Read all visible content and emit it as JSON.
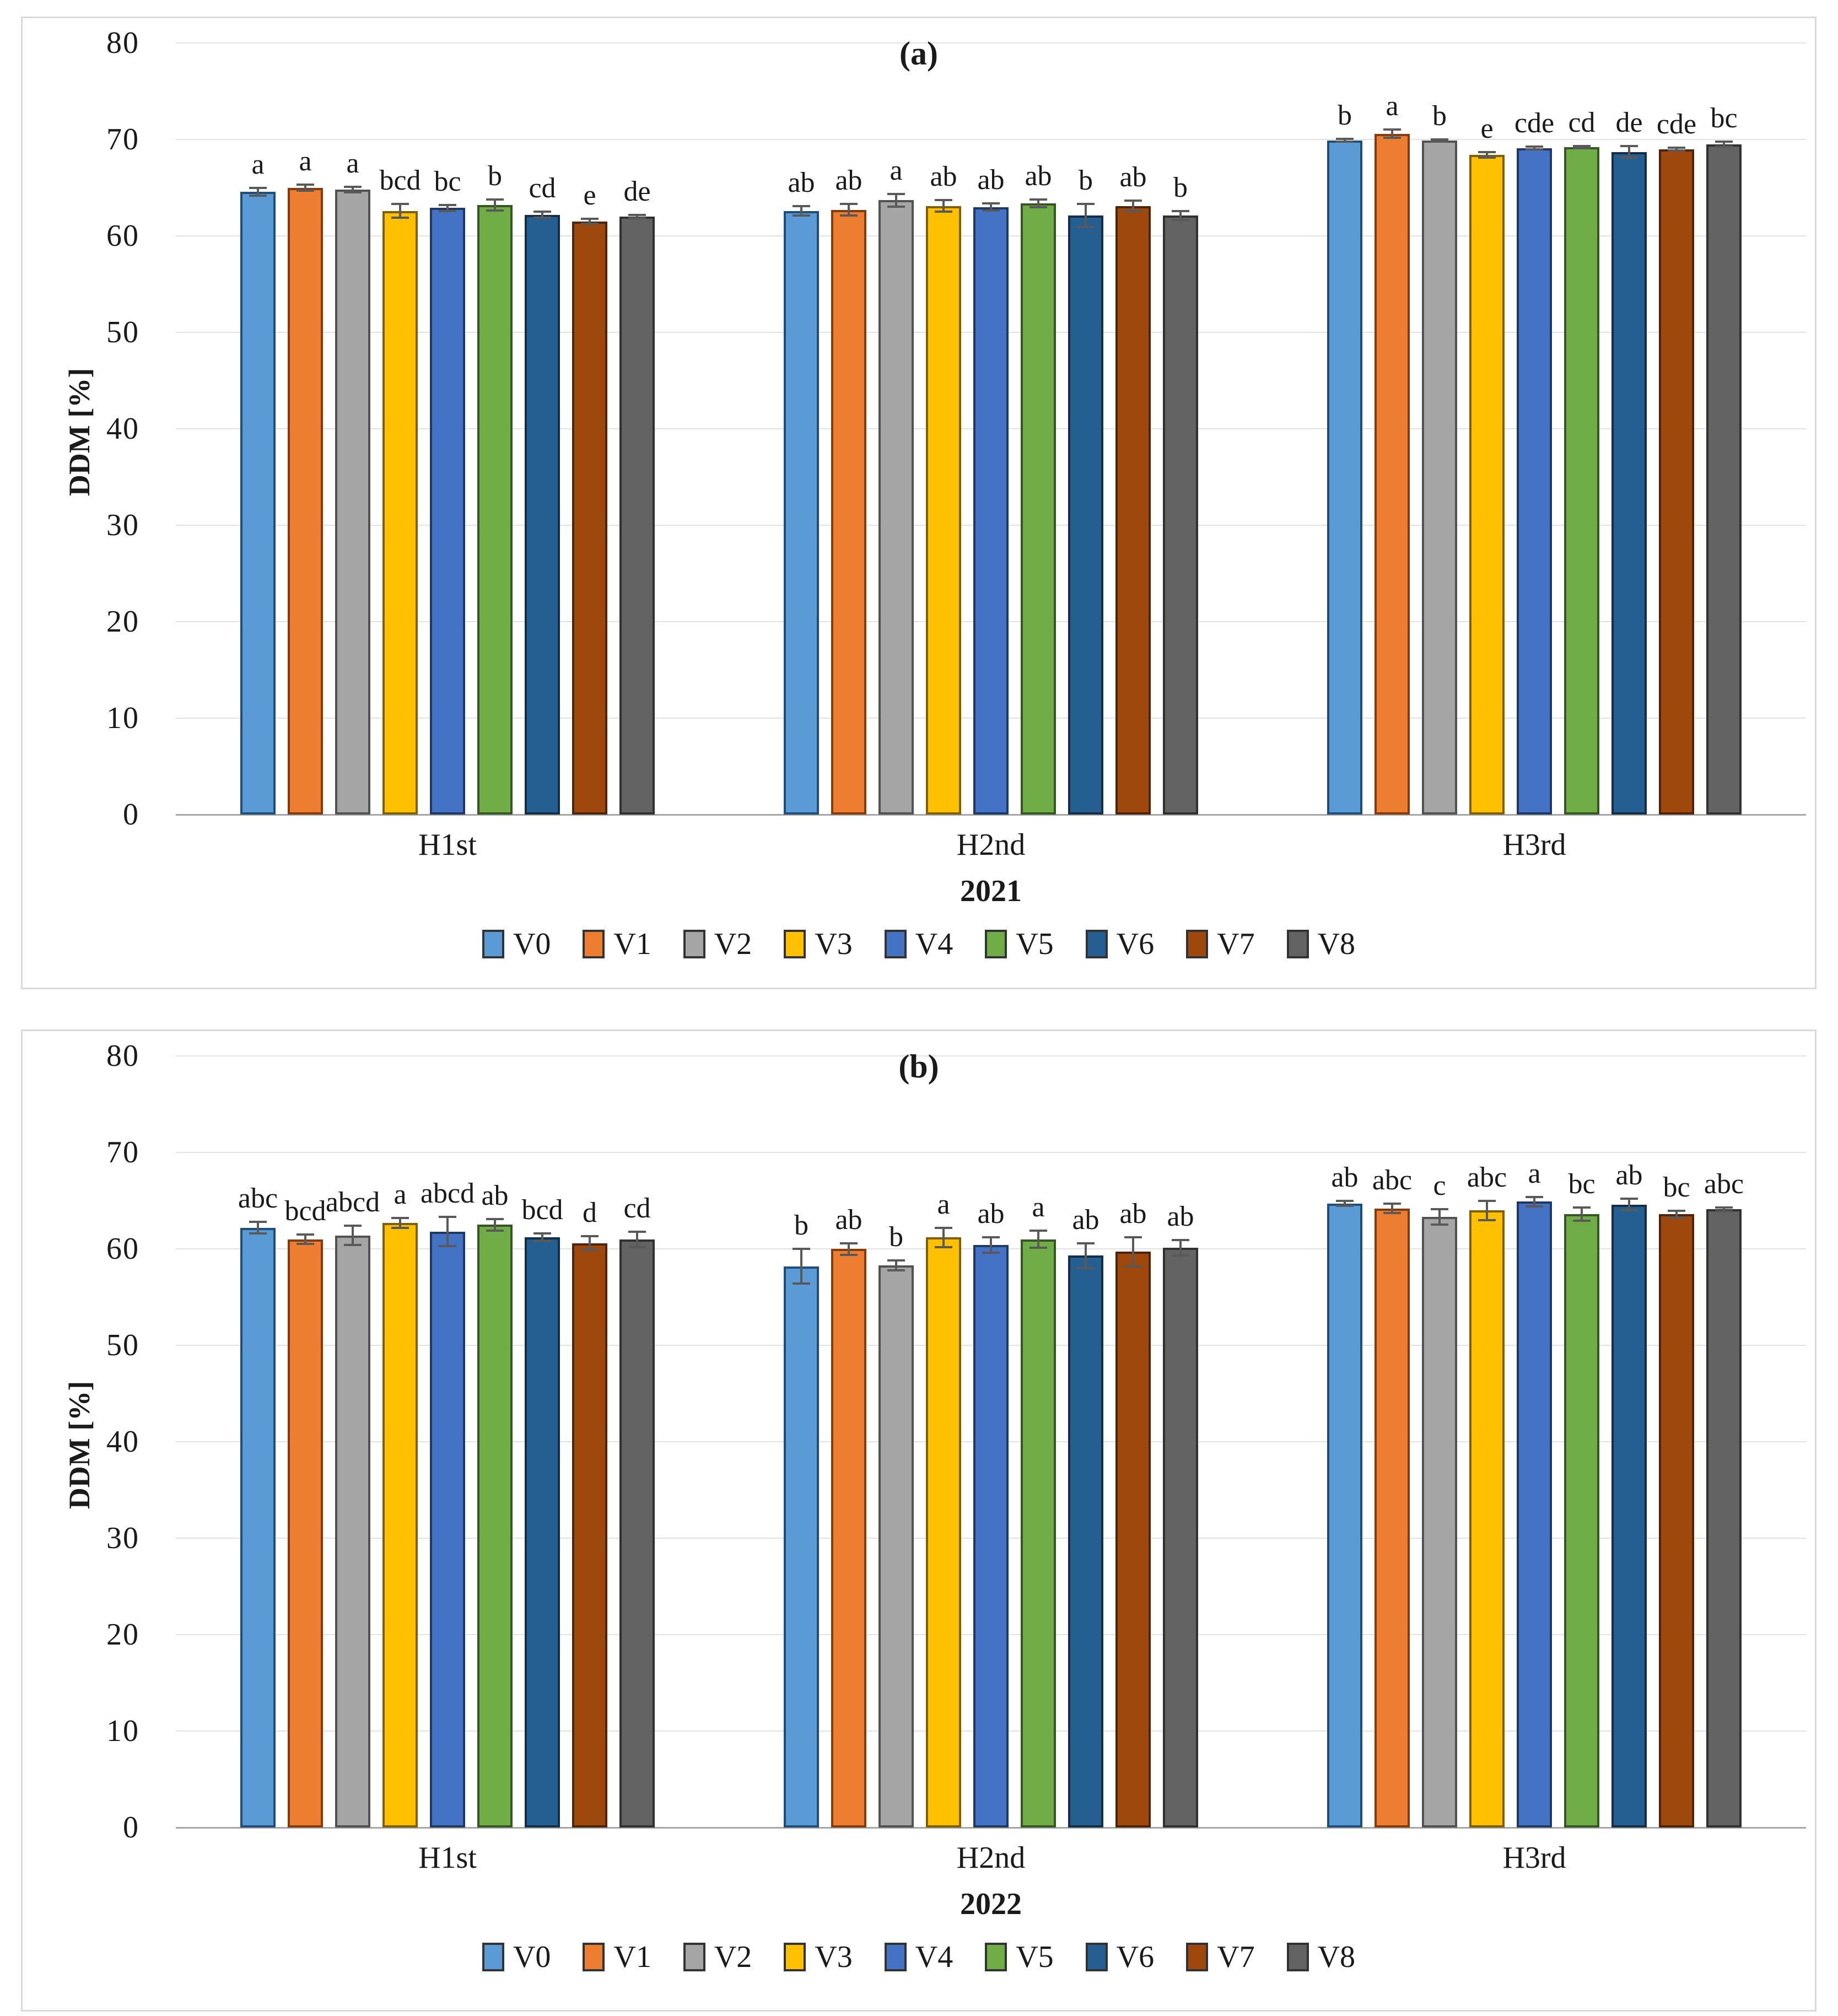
{
  "figure": {
    "description": "Two-panel clustered bar chart of DDM [%] by harvest (H1st, H2nd, H3rd) for treatments V0-V8 in 2021 (a) and 2022 (b), with error bars and significance letters."
  },
  "chart_data": [
    {
      "type": "bar",
      "title": "(a)",
      "ylabel": "DDM [%]",
      "year_label": "2021",
      "ylim": [
        0,
        80
      ],
      "yticks": [
        80,
        70,
        60,
        50,
        40,
        30,
        20,
        10,
        0
      ],
      "grid": true,
      "legend_position": "bottom",
      "categories": [
        "H1st",
        "H2nd",
        "H3rd"
      ],
      "error_bar_color": "#595959",
      "series": [
        {
          "name": "V0",
          "color": "#5B9BD5",
          "outline": "#1F4E79",
          "values": [
            64.6,
            62.6,
            69.9
          ],
          "errors": [
            0.4,
            0.5,
            0.15
          ],
          "letters": [
            "a",
            "ab",
            "b"
          ]
        },
        {
          "name": "V1",
          "color": "#ED7D31",
          "outline": "#843C0C",
          "values": [
            65.0,
            62.7,
            70.6
          ],
          "errors": [
            0.3,
            0.6,
            0.45
          ],
          "letters": [
            "a",
            "ab",
            "a"
          ]
        },
        {
          "name": "V2",
          "color": "#A5A5A5",
          "outline": "#525252",
          "values": [
            64.8,
            63.7,
            69.9
          ],
          "errors": [
            0.3,
            0.65,
            0.1
          ],
          "letters": [
            "a",
            "a",
            "b"
          ]
        },
        {
          "name": "V3",
          "color": "#FFC000",
          "outline": "#7F6000",
          "values": [
            62.6,
            63.1,
            68.4
          ],
          "errors": [
            0.7,
            0.6,
            0.3
          ],
          "letters": [
            "bcd",
            "ab",
            "e"
          ]
        },
        {
          "name": "V4",
          "color": "#4472C4",
          "outline": "#1F3864",
          "values": [
            62.9,
            63.0,
            69.1
          ],
          "errors": [
            0.3,
            0.35,
            0.15
          ],
          "letters": [
            "bc",
            "ab",
            "cde"
          ]
        },
        {
          "name": "V5",
          "color": "#70AD47",
          "outline": "#375623",
          "values": [
            63.2,
            63.4,
            69.2
          ],
          "errors": [
            0.55,
            0.4,
            0.1
          ],
          "letters": [
            "b",
            "ab",
            "cd"
          ]
        },
        {
          "name": "V6",
          "color": "#255E91",
          "outline": "#142E45",
          "values": [
            62.2,
            62.1,
            68.7
          ],
          "errors": [
            0.3,
            1.2,
            0.6
          ],
          "letters": [
            "cd",
            "b",
            "de"
          ]
        },
        {
          "name": "V7",
          "color": "#9E480E",
          "outline": "#4F2407",
          "values": [
            61.5,
            63.1,
            69.0
          ],
          "errors": [
            0.25,
            0.55,
            0.15
          ],
          "letters": [
            "e",
            "ab",
            "cde"
          ]
        },
        {
          "name": "V8",
          "color": "#636363",
          "outline": "#313131",
          "values": [
            62.0,
            62.1,
            69.5
          ],
          "errors": [
            0.15,
            0.45,
            0.25
          ],
          "letters": [
            "de",
            "b",
            "bc"
          ]
        }
      ]
    },
    {
      "type": "bar",
      "title": "(b)",
      "ylabel": "DDM [%]",
      "year_label": "2022",
      "ylim": [
        0,
        80
      ],
      "yticks": [
        80,
        70,
        60,
        50,
        40,
        30,
        20,
        10,
        0
      ],
      "grid": true,
      "legend_position": "bottom",
      "categories": [
        "H1st",
        "H2nd",
        "H3rd"
      ],
      "error_bar_color": "#595959",
      "series": [
        {
          "name": "V0",
          "color": "#5B9BD5",
          "outline": "#1F4E79",
          "values": [
            62.2,
            58.2,
            64.7
          ],
          "errors": [
            0.6,
            1.8,
            0.25
          ],
          "letters": [
            "abc",
            "b",
            "ab"
          ]
        },
        {
          "name": "V1",
          "color": "#ED7D31",
          "outline": "#843C0C",
          "values": [
            61.0,
            60.0,
            64.2
          ],
          "errors": [
            0.5,
            0.6,
            0.5
          ],
          "letters": [
            "bcd",
            "ab",
            "abc"
          ]
        },
        {
          "name": "V2",
          "color": "#A5A5A5",
          "outline": "#525252",
          "values": [
            61.4,
            58.3,
            63.3
          ],
          "errors": [
            1.0,
            0.5,
            0.8
          ],
          "letters": [
            "abcd",
            "b",
            "c"
          ]
        },
        {
          "name": "V3",
          "color": "#FFC000",
          "outline": "#7F6000",
          "values": [
            62.7,
            61.2,
            64.0
          ],
          "errors": [
            0.5,
            1.0,
            1.0
          ],
          "letters": [
            "a",
            "a",
            "abc"
          ]
        },
        {
          "name": "V4",
          "color": "#4472C4",
          "outline": "#1F3864",
          "values": [
            61.8,
            60.4,
            64.9
          ],
          "errors": [
            1.5,
            0.8,
            0.5
          ],
          "letters": [
            "abcd",
            "ab",
            "a"
          ]
        },
        {
          "name": "V5",
          "color": "#70AD47",
          "outline": "#375623",
          "values": [
            62.5,
            61.0,
            63.6
          ],
          "errors": [
            0.6,
            0.9,
            0.7
          ],
          "letters": [
            "ab",
            "a",
            "bc"
          ]
        },
        {
          "name": "V6",
          "color": "#255E91",
          "outline": "#142E45",
          "values": [
            61.2,
            59.3,
            64.6
          ],
          "errors": [
            0.4,
            1.3,
            0.6
          ],
          "letters": [
            "bcd",
            "ab",
            "ab"
          ]
        },
        {
          "name": "V7",
          "color": "#9E480E",
          "outline": "#4F2407",
          "values": [
            60.6,
            59.7,
            63.6
          ],
          "errors": [
            0.7,
            1.5,
            0.35
          ],
          "letters": [
            "d",
            "ab",
            "bc"
          ]
        },
        {
          "name": "V8",
          "color": "#636363",
          "outline": "#313131",
          "values": [
            61.0,
            60.1,
            64.1
          ],
          "errors": [
            0.8,
            0.8,
            0.2
          ],
          "letters": [
            "cd",
            "ab",
            "abc"
          ]
        }
      ]
    }
  ]
}
